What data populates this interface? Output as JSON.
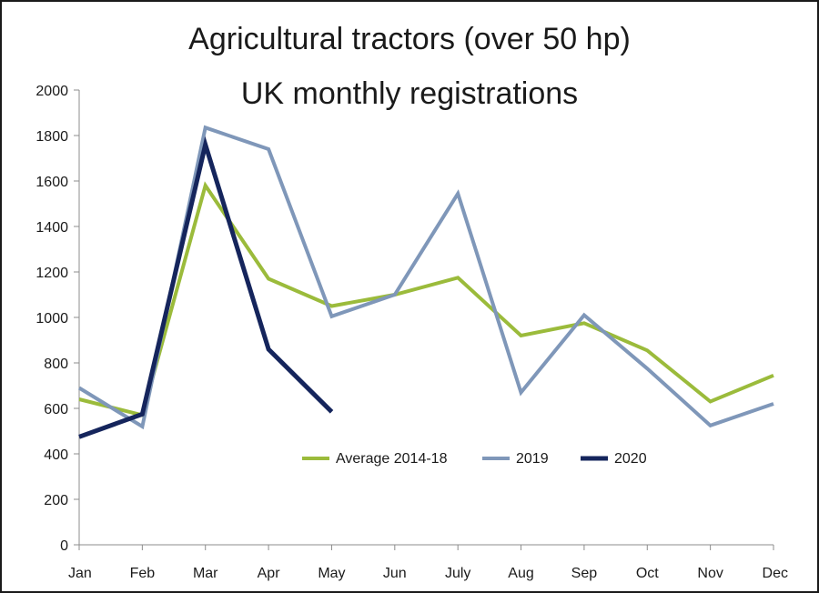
{
  "chart_data": {
    "type": "line",
    "title": "Agricultural tractors (over 50 hp)",
    "subtitle": "UK monthly registrations",
    "xlabel": "",
    "ylabel": "",
    "categories": [
      "Jan",
      "Feb",
      "Mar",
      "Apr",
      "May",
      "Jun",
      "July",
      "Aug",
      "Sep",
      "Oct",
      "Nov",
      "Dec"
    ],
    "ylim": [
      0,
      2000
    ],
    "yticks": [
      "0",
      "200",
      "400",
      "600",
      "800",
      "1000",
      "1200",
      "1400",
      "1600",
      "1800",
      "2000"
    ],
    "grid": false,
    "legend_position": "bottom-center, inside plot",
    "series": [
      {
        "name": "Average 2014-18",
        "color": "#9bbb3b",
        "values": [
          640,
          570,
          1580,
          1170,
          1050,
          1100,
          1175,
          920,
          975,
          855,
          630,
          745
        ]
      },
      {
        "name": "2019",
        "color": "#7f97b9",
        "values": [
          690,
          520,
          1835,
          1740,
          1005,
          1100,
          1545,
          670,
          1010,
          775,
          525,
          620
        ]
      },
      {
        "name": "2020",
        "color": "#15255c",
        "values": [
          475,
          575,
          1760,
          860,
          585,
          null,
          null,
          null,
          null,
          null,
          null,
          null
        ]
      }
    ]
  }
}
